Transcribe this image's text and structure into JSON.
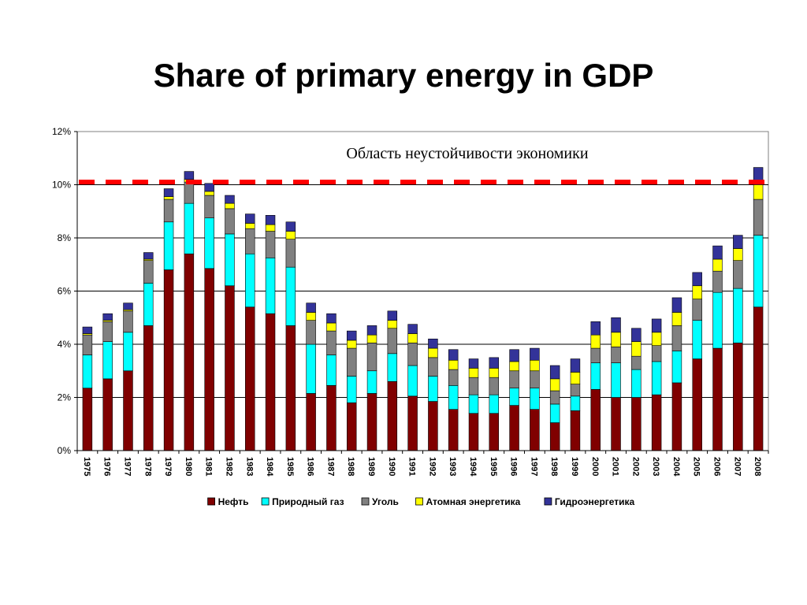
{
  "slide": {
    "title": "Share of primary energy in GDP"
  },
  "colors": {
    "Нефть": "#800000",
    "Природный газ": "#00ffff",
    "Уголь": "#808080",
    "Атомная энергетика": "#ffff00",
    "Гидроэнергетика": "#333399",
    "threshold_line": "#ff0000"
  },
  "chart_data": {
    "type": "bar",
    "stacked": true,
    "title": "",
    "xlabel": "",
    "ylabel": "",
    "ylim": [
      0,
      12
    ],
    "y_ticks": [
      "0%",
      "2%",
      "4%",
      "6%",
      "8%",
      "10%",
      "12%"
    ],
    "grid": "horizontal",
    "legend_position": "bottom",
    "annotation": "Область неустойчивости экономики",
    "threshold": {
      "value": 10.1,
      "style": "dashed"
    },
    "categories": [
      "1975",
      "1976",
      "1977",
      "1978",
      "1979",
      "1980",
      "1981",
      "1982",
      "1983",
      "1984",
      "1985",
      "1986",
      "1987",
      "1988",
      "1989",
      "1990",
      "1991",
      "1992",
      "1993",
      "1994",
      "1995",
      "1996",
      "1997",
      "1998",
      "1999",
      "2000",
      "2001",
      "2002",
      "2003",
      "2004",
      "2005",
      "2006",
      "2007",
      "2008"
    ],
    "series": [
      {
        "name": "Нефть",
        "values": [
          2.35,
          2.7,
          3.0,
          4.7,
          6.8,
          7.4,
          6.85,
          6.2,
          5.4,
          5.15,
          4.7,
          2.15,
          2.45,
          1.8,
          2.15,
          2.6,
          2.05,
          1.85,
          1.55,
          1.4,
          1.4,
          1.7,
          1.55,
          1.05,
          1.5,
          2.3,
          2.0,
          2.0,
          2.1,
          2.55,
          3.45,
          3.85,
          4.05,
          5.4
        ]
      },
      {
        "name": "Природный газ",
        "values": [
          1.25,
          1.4,
          1.45,
          1.6,
          1.8,
          1.9,
          1.9,
          1.95,
          2.0,
          2.1,
          2.2,
          1.85,
          1.15,
          1.0,
          0.85,
          1.05,
          1.15,
          0.95,
          0.9,
          0.7,
          0.7,
          0.65,
          0.8,
          0.7,
          0.55,
          1.0,
          1.3,
          1.05,
          1.25,
          1.2,
          1.45,
          2.1,
          2.05,
          2.7
        ]
      },
      {
        "name": "Уголь",
        "values": [
          0.75,
          0.75,
          0.8,
          0.85,
          0.85,
          0.8,
          0.85,
          0.95,
          0.95,
          1.0,
          1.05,
          0.9,
          0.9,
          1.05,
          1.05,
          0.95,
          0.85,
          0.7,
          0.6,
          0.65,
          0.65,
          0.65,
          0.65,
          0.5,
          0.45,
          0.55,
          0.6,
          0.5,
          0.6,
          0.95,
          0.8,
          0.8,
          1.05,
          1.35
        ]
      },
      {
        "name": "Атомная энергетика",
        "values": [
          0.05,
          0.05,
          0.05,
          0.05,
          0.1,
          0.1,
          0.15,
          0.2,
          0.2,
          0.25,
          0.3,
          0.3,
          0.3,
          0.3,
          0.3,
          0.3,
          0.35,
          0.35,
          0.35,
          0.35,
          0.35,
          0.35,
          0.4,
          0.45,
          0.45,
          0.5,
          0.55,
          0.55,
          0.5,
          0.5,
          0.5,
          0.45,
          0.45,
          0.55
        ]
      },
      {
        "name": "Гидроэнергетика",
        "values": [
          0.25,
          0.25,
          0.25,
          0.25,
          0.3,
          0.3,
          0.3,
          0.3,
          0.35,
          0.35,
          0.35,
          0.35,
          0.35,
          0.35,
          0.35,
          0.35,
          0.35,
          0.35,
          0.4,
          0.35,
          0.4,
          0.45,
          0.45,
          0.5,
          0.5,
          0.5,
          0.55,
          0.5,
          0.5,
          0.55,
          0.5,
          0.5,
          0.5,
          0.65
        ]
      }
    ]
  }
}
